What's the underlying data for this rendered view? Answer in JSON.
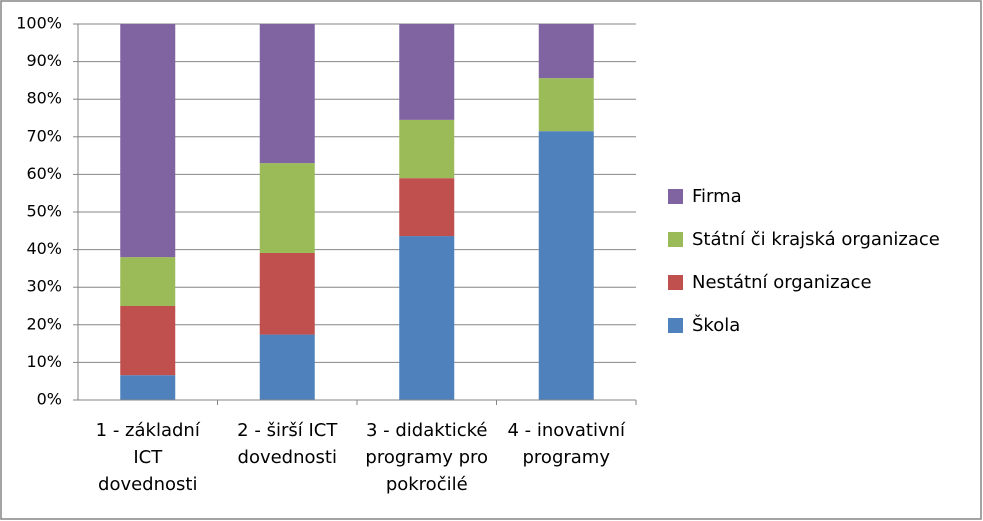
{
  "chart_data": {
    "type": "stacked_bar",
    "categories": [
      "1 - základní\nICT\ndovednosti",
      "2 - širší ICT\ndovednosti",
      "3 - didaktické\nprogramy pro\npokročilé",
      "4 - inovativní\nprogramy"
    ],
    "series": [
      {
        "name": "Škola",
        "color": "#4f81bd",
        "values": [
          6.6,
          17.4,
          43.6,
          71.5
        ]
      },
      {
        "name": "Nestátní organizace",
        "color": "#c0504d",
        "values": [
          18.4,
          21.7,
          15.4,
          0
        ]
      },
      {
        "name": "Státní či krajská organizace",
        "color": "#9bbb59",
        "values": [
          13.0,
          23.9,
          15.5,
          14.1
        ]
      },
      {
        "name": "Firma",
        "color": "#8064a2",
        "values": [
          62.0,
          37.0,
          25.5,
          14.4
        ]
      }
    ],
    "ylim": [
      0,
      100
    ],
    "yticks": [
      {
        "value": 0,
        "label": "0%"
      },
      {
        "value": 10,
        "label": "10%"
      },
      {
        "value": 20,
        "label": "20%"
      },
      {
        "value": 30,
        "label": "30%"
      },
      {
        "value": 40,
        "label": "40%"
      },
      {
        "value": 50,
        "label": "50%"
      },
      {
        "value": 60,
        "label": "60%"
      },
      {
        "value": 70,
        "label": "70%"
      },
      {
        "value": 80,
        "label": "80%"
      },
      {
        "value": 90,
        "label": "90%"
      },
      {
        "value": 100,
        "label": "100%"
      }
    ],
    "grid": true,
    "legend": "right"
  }
}
